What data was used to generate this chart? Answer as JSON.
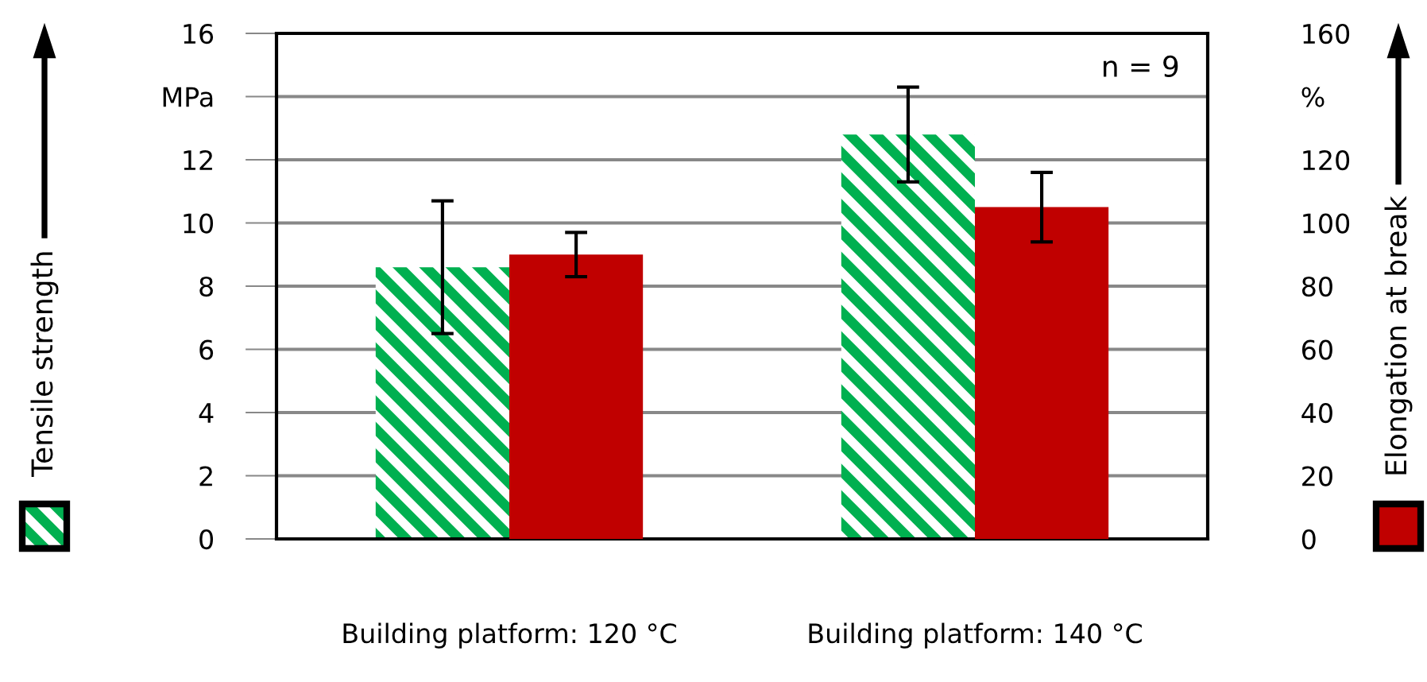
{
  "chart_data": {
    "type": "bar",
    "categories": [
      "Building platform: 120 °C",
      "Building platform: 140 °C"
    ],
    "series": [
      {
        "color": "#00b050",
        "values": [
          8.6,
          12.8
        ],
        "errors": [
          2.1,
          1.5
        ]
      },
      {
        "color": "#c00000",
        "values": [
          90,
          105
        ],
        "errors": [
          7,
          11
        ],
        "axis": "y2"
      }
    ],
    "ylabel": "Tensile strength",
    "y2label": "Elongation at break",
    "ylim": [
      0,
      16
    ],
    "yticks": [
      0,
      2,
      4,
      6,
      8,
      10,
      12,
      {
        "value": 14,
        "label": "MPa"
      },
      16
    ],
    "y2lim": [
      0,
      160
    ],
    "y2ticks": [
      0,
      20,
      40,
      60,
      80,
      100,
      120,
      {
        "value": 140,
        "label": "%"
      },
      160
    ],
    "grid": "y",
    "annotations": [
      "n = 9"
    ]
  }
}
